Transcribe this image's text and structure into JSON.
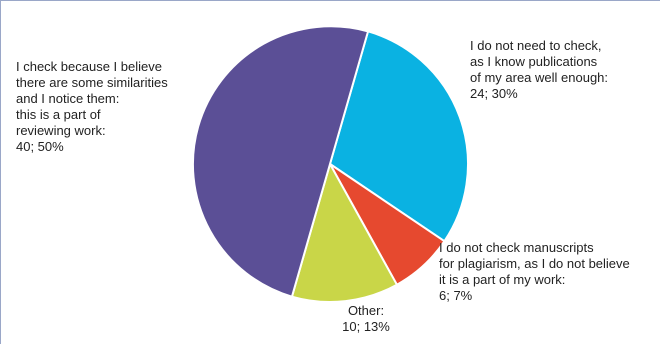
{
  "chart_data": {
    "type": "pie",
    "title": "",
    "slices": [
      {
        "label": "I do not need to check, as I know publications of my area well enough",
        "value": 24,
        "percent": 30,
        "color": "#0ab2e2",
        "label_lines": [
          "I do not need to check,",
          "as I know publications",
          "of my area well enough:",
          "24; 30%"
        ]
      },
      {
        "label": "I do not check manuscripts for plagiarism, as I do not believe it is a part of my work",
        "value": 6,
        "percent": 7,
        "color": "#e6492f",
        "label_lines": [
          "I do not check manuscripts",
          "for plagiarism, as I do not believe",
          "it is a part of my work:",
          "6; 7%"
        ]
      },
      {
        "label": "Other",
        "value": 10,
        "percent": 13,
        "color": "#c9d648",
        "label_lines": [
          "Other:",
          "10; 13%"
        ]
      },
      {
        "label": "I check because I believe there are some similarities and I notice them: this is a part of reviewing work",
        "value": 40,
        "percent": 50,
        "color": "#5b4f96",
        "label_lines": [
          "I check because I believe",
          "there are some similarities",
          "and I notice them:",
          "this is a part of",
          "reviewing work:",
          "40; 50%"
        ]
      }
    ],
    "start_angle_deg": 16,
    "direction": "clockwise",
    "legend": "none"
  }
}
